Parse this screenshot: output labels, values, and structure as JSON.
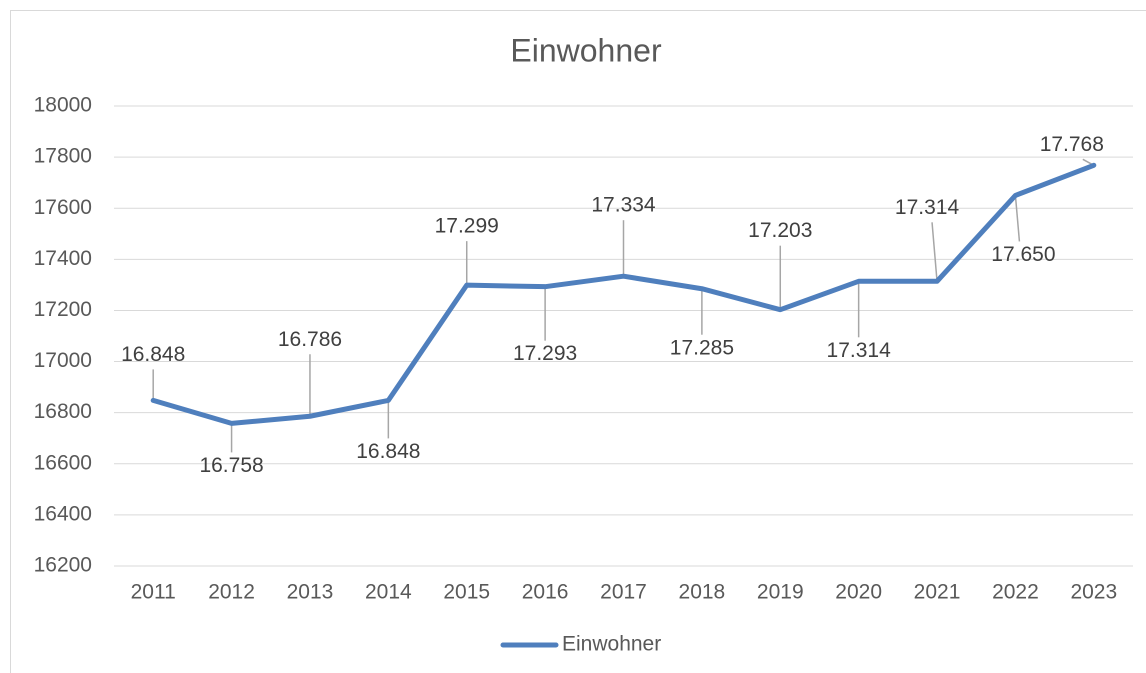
{
  "chart_data": {
    "type": "line",
    "title": "Einwohner",
    "categories": [
      "2011",
      "2012",
      "2013",
      "2014",
      "2015",
      "2016",
      "2017",
      "2018",
      "2019",
      "2020",
      "2021",
      "2022",
      "2023"
    ],
    "series": [
      {
        "name": "Einwohner",
        "color": "#4f7fbd",
        "values": [
          16848,
          16758,
          16786,
          16848,
          17299,
          17293,
          17334,
          17285,
          17203,
          17314,
          17314,
          17650,
          17768
        ],
        "value_labels": [
          "16.848",
          "16.758",
          "16.786",
          "16.848",
          "17.299",
          "17.293",
          "17.334",
          "17.285",
          "17.203",
          "17.314",
          "17.314",
          "17.650",
          "17.768"
        ]
      }
    ],
    "ylim": [
      16200,
      18000
    ],
    "yticks": [
      16200,
      16400,
      16600,
      16800,
      17000,
      17200,
      17400,
      17600,
      17800,
      18000
    ],
    "grid": true,
    "legend": "bottom"
  }
}
